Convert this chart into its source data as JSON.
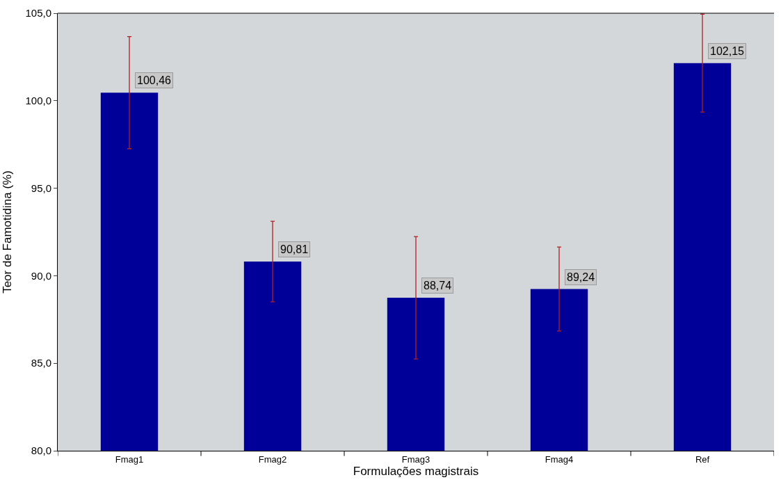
{
  "chart_data": {
    "type": "bar",
    "xlabel": "Formulações magistrais",
    "ylabel": "Teor de Famotidina (%)",
    "categories": [
      "Fmag1",
      "Fmag2",
      "Fmag3",
      "Fmag4",
      "Ref"
    ],
    "values": [
      100.46,
      90.81,
      88.74,
      89.24,
      102.15
    ],
    "value_labels": [
      "100,46",
      "90,81",
      "88,74",
      "89,24",
      "102,15"
    ],
    "errors": [
      3.2,
      2.3,
      3.5,
      2.4,
      2.8
    ],
    "color": "#000099",
    "ylim": [
      80,
      105
    ],
    "yticks": [
      {
        "value": 80,
        "label": "80,0"
      },
      {
        "value": 85,
        "label": "85,0"
      },
      {
        "value": 90,
        "label": "90,0"
      },
      {
        "value": 95,
        "label": "95,0"
      },
      {
        "value": 100,
        "label": "100,0"
      },
      {
        "value": 105,
        "label": "105,0"
      }
    ],
    "grid": false,
    "legend": false
  }
}
